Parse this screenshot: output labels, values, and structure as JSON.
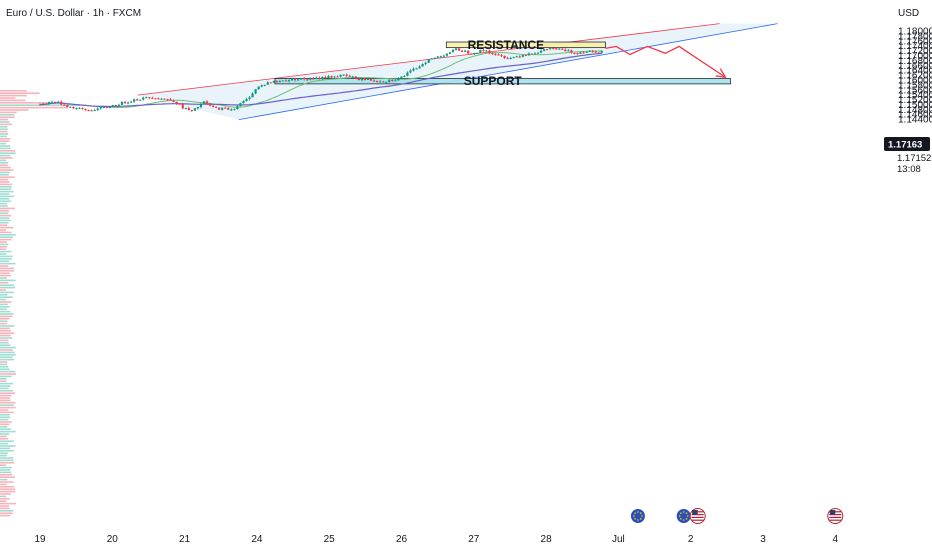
{
  "header": {
    "symbol": "Euro / U.S. Dollar · 1h · FXCM"
  },
  "axis": {
    "currency": "USD"
  },
  "colors": {
    "up": "#089981",
    "down": "#f23645",
    "channel_fill": "#e6f3f8",
    "channel_top": "#f23645",
    "channel_bottom": "#2962ff",
    "ma_fast": "#6fbf73",
    "ma_slow": "#6c5fc7",
    "resistance_fill": "#fbf0a8",
    "support_fill": "#a7e3ee",
    "projection": "#f23645",
    "badge": "#131722"
  },
  "chart_data": {
    "type": "candlestick",
    "symbol": "EUR/USD",
    "timeframe": "1h",
    "y_ticks": [
      "1.18000",
      "1.17800",
      "1.17600",
      "1.17400",
      "1.17200",
      "1.17000",
      "1.16800",
      "1.16600",
      "1.16400",
      "1.16200",
      "1.16000",
      "1.15800",
      "1.15600",
      "1.15400",
      "1.15200",
      "1.15000",
      "1.14800",
      "1.14600",
      "1.14400"
    ],
    "ylim": [
      1.1438,
      1.181
    ],
    "x_ticks": [
      {
        "label": "19",
        "day": 0
      },
      {
        "label": "20",
        "day": 1
      },
      {
        "label": "21",
        "day": 2
      },
      {
        "label": "24",
        "day": 3
      },
      {
        "label": "25",
        "day": 4
      },
      {
        "label": "26",
        "day": 5
      },
      {
        "label": "27",
        "day": 6
      },
      {
        "label": "28",
        "day": 7
      },
      {
        "label": "Jul",
        "day": 8
      },
      {
        "label": "2",
        "day": 9
      },
      {
        "label": "3",
        "day": 10
      },
      {
        "label": "4",
        "day": 11
      }
    ],
    "last_price": "1.17163",
    "second_price": "1.17152",
    "countdown": "13:08",
    "price_path": [
      [
        0.0,
        1.15
      ],
      [
        0.25,
        1.1512
      ],
      [
        0.45,
        1.149
      ],
      [
        0.7,
        1.1475
      ],
      [
        0.95,
        1.1488
      ],
      [
        1.15,
        1.1503
      ],
      [
        1.35,
        1.152
      ],
      [
        1.6,
        1.153
      ],
      [
        1.9,
        1.1515
      ],
      [
        2.0,
        1.149
      ],
      [
        2.15,
        1.147
      ],
      [
        2.3,
        1.151
      ],
      [
        2.45,
        1.1485
      ],
      [
        2.7,
        1.148
      ],
      [
        2.9,
        1.152
      ],
      [
        3.05,
        1.157
      ],
      [
        3.2,
        1.159
      ],
      [
        3.35,
        1.1595
      ],
      [
        3.6,
        1.1605
      ],
      [
        3.8,
        1.1602
      ],
      [
        4.0,
        1.1612
      ],
      [
        4.25,
        1.1618
      ],
      [
        4.45,
        1.1604
      ],
      [
        4.6,
        1.16
      ],
      [
        4.8,
        1.1595
      ],
      [
        5.0,
        1.1605
      ],
      [
        5.2,
        1.164
      ],
      [
        5.4,
        1.168
      ],
      [
        5.6,
        1.17
      ],
      [
        5.8,
        1.1725
      ],
      [
        6.0,
        1.171
      ],
      [
        6.2,
        1.1722
      ],
      [
        6.35,
        1.17
      ],
      [
        6.55,
        1.169
      ],
      [
        6.75,
        1.1705
      ],
      [
        6.95,
        1.1715
      ],
      [
        7.1,
        1.173
      ],
      [
        7.3,
        1.172
      ],
      [
        7.45,
        1.171
      ],
      [
        7.6,
        1.1718
      ],
      [
        7.8,
        1.1716
      ]
    ],
    "zones": [
      {
        "label": "RESISTANCE",
        "price_low": 1.1732,
        "price_high": 1.1755,
        "day_start": 5.62,
        "day_end": 7.82
      },
      {
        "label": "SUPPORT",
        "price_low": 1.1584,
        "price_high": 1.1606,
        "day_start": 3.25,
        "day_end": 9.55
      }
    ],
    "channel": {
      "upper": [
        [
          1.35,
          1.1538
        ],
        [
          9.4,
          1.183
        ]
      ],
      "lower": [
        [
          2.75,
          1.1438
        ],
        [
          10.2,
          1.183
        ]
      ]
    },
    "projection_path": [
      [
        7.82,
        1.1729
      ],
      [
        7.97,
        1.1737
      ],
      [
        8.16,
        1.1704
      ],
      [
        8.4,
        1.1737
      ],
      [
        8.65,
        1.1709
      ],
      [
        8.84,
        1.1737
      ],
      [
        9.48,
        1.1611
      ]
    ],
    "event_badges": [
      {
        "day": 8.27,
        "flags": [
          "eu"
        ]
      },
      {
        "day": 9.0,
        "flags": [
          "eu",
          "us"
        ]
      },
      {
        "day": 11.0,
        "flags": [
          "us"
        ]
      }
    ],
    "grid": false
  }
}
